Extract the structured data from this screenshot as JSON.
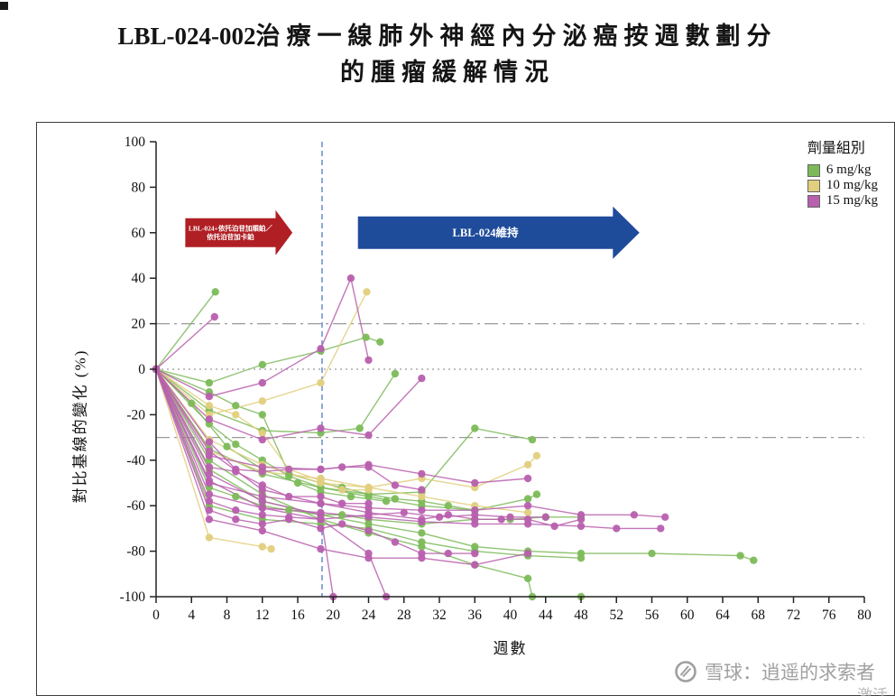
{
  "page": {
    "title_prefix": "LBL-024-002",
    "title_line1_rest": "治療一線肺外神經內分泌癌按週數劃分",
    "title_line2": "的腫瘤緩解情況"
  },
  "watermark": {
    "text": "雪球：逍遥的求索者",
    "partial_text": "激活"
  },
  "chart_data": {
    "type": "line",
    "subtype": "spider-plot",
    "title": "LBL-024-002治療一線肺外神經內分泌癌按週數劃分的腫瘤緩解情況",
    "xlabel": "週數",
    "ylabel": "對比基線的變化 (%)",
    "xlim": [
      0,
      80
    ],
    "ylim": [
      -100,
      100
    ],
    "xticks": [
      0,
      4,
      8,
      12,
      16,
      20,
      24,
      28,
      32,
      36,
      40,
      44,
      48,
      52,
      56,
      60,
      64,
      68,
      72,
      76,
      80
    ],
    "yticks": [
      -100,
      -80,
      -60,
      -40,
      -20,
      0,
      20,
      40,
      60,
      80,
      100
    ],
    "grid": false,
    "reference_lines": [
      {
        "y": 20,
        "color": "#999999",
        "dash": "15 5 3 5"
      },
      {
        "y": 0,
        "color": "#999999",
        "dash": "2 4"
      },
      {
        "y": -30,
        "color": "#999999",
        "dash": "15 5 3 5"
      }
    ],
    "vline": {
      "x": 18.75,
      "color": "#5b84c4",
      "dash": "6 4"
    },
    "legend": {
      "title": "劑量組別",
      "position": "top-right",
      "entries": [
        {
          "label": "6 mg/kg",
          "color": "#7cba59"
        },
        {
          "label": "10 mg/kg",
          "color": "#e2cf7e"
        },
        {
          "label": "15 mg/kg",
          "color": "#b85fae"
        }
      ]
    },
    "annotations": [
      {
        "type": "arrow",
        "x_start": 3.3,
        "x_end": 15.4,
        "y": 60,
        "color": "#b01f24",
        "body_half_height": 16,
        "head_half_height": 25,
        "head_length_weeks": 1.9,
        "label_lines": [
          "LBL-024+依托泊苷加順鉑／",
          "依托泊苷加卡鉑"
        ],
        "font_size": 7.5
      },
      {
        "type": "arrow",
        "x_start": 22.8,
        "x_end": 54.6,
        "y": 60,
        "color": "#1f4b9b",
        "body_half_height": 18,
        "head_half_height": 29,
        "head_length_weeks": 3,
        "label_lines": [
          "LBL-024維持"
        ],
        "font_size": 12.5
      }
    ],
    "series": [
      {
        "group": "6 mg/kg",
        "points": [
          [
            0,
            0
          ],
          [
            6.7,
            34
          ]
        ]
      },
      {
        "group": "6 mg/kg",
        "points": [
          [
            0,
            0
          ],
          [
            6,
            -6
          ],
          [
            12,
            2
          ],
          [
            18.6,
            8
          ],
          [
            23.7,
            14
          ],
          [
            25.3,
            12
          ]
        ]
      },
      {
        "group": "6 mg/kg",
        "points": [
          [
            0,
            0
          ],
          [
            6,
            -18
          ],
          [
            12,
            -27
          ],
          [
            18.6,
            -28
          ],
          [
            23,
            -26
          ],
          [
            27,
            -2
          ]
        ]
      },
      {
        "group": "6 mg/kg",
        "points": [
          [
            0,
            0
          ],
          [
            6,
            -35
          ],
          [
            12,
            -46
          ],
          [
            18.6,
            -52
          ],
          [
            24,
            -55
          ],
          [
            30,
            -54
          ],
          [
            36,
            -26
          ],
          [
            42.5,
            -31
          ]
        ]
      },
      {
        "group": "6 mg/kg",
        "points": [
          [
            0,
            0
          ],
          [
            6,
            -24
          ],
          [
            9,
            -33
          ],
          [
            12,
            -40
          ],
          [
            15,
            -47
          ],
          [
            18.6,
            -52
          ],
          [
            24,
            -56
          ],
          [
            30,
            -60
          ],
          [
            36,
            -62
          ],
          [
            42,
            -57
          ],
          [
            43,
            -55
          ]
        ]
      },
      {
        "group": "6 mg/kg",
        "points": [
          [
            0,
            0
          ],
          [
            6,
            -44
          ],
          [
            12,
            -58
          ],
          [
            18.6,
            -64
          ],
          [
            24,
            -68
          ],
          [
            30,
            -72
          ],
          [
            36,
            -78
          ],
          [
            42,
            -80
          ],
          [
            48,
            -81
          ],
          [
            56,
            -81
          ],
          [
            66,
            -82
          ],
          [
            67.5,
            -84
          ]
        ]
      },
      {
        "group": "6 mg/kg",
        "points": [
          [
            0,
            0
          ],
          [
            6,
            -40
          ],
          [
            12,
            -55
          ],
          [
            18.6,
            -66
          ],
          [
            24,
            -72
          ],
          [
            30,
            -78
          ],
          [
            36,
            -86
          ],
          [
            42,
            -92
          ],
          [
            42.5,
            -100
          ],
          [
            48,
            -100
          ]
        ]
      },
      {
        "group": "6 mg/kg",
        "points": [
          [
            0,
            0
          ],
          [
            6,
            -52
          ],
          [
            9,
            -56
          ],
          [
            12,
            -60
          ],
          [
            15,
            -62
          ],
          [
            18.6,
            -64
          ],
          [
            21,
            -64
          ],
          [
            24,
            -66
          ],
          [
            30,
            -68
          ],
          [
            36,
            -66
          ],
          [
            40,
            -66
          ],
          [
            44,
            -65
          ],
          [
            48,
            -65
          ]
        ]
      },
      {
        "group": "6 mg/kg",
        "points": [
          [
            0,
            0
          ],
          [
            6,
            -60
          ],
          [
            12,
            -66
          ],
          [
            18.6,
            -68
          ],
          [
            24,
            -70
          ],
          [
            30,
            -76
          ],
          [
            36,
            -80
          ],
          [
            42,
            -82
          ],
          [
            48,
            -83
          ]
        ]
      },
      {
        "group": "6 mg/kg",
        "points": [
          [
            0,
            0
          ],
          [
            4,
            -15
          ],
          [
            8,
            -34
          ],
          [
            12,
            -44
          ],
          [
            16,
            -50
          ],
          [
            18.6,
            -54
          ],
          [
            22,
            -56
          ],
          [
            26,
            -58
          ]
        ]
      },
      {
        "group": "6 mg/kg",
        "points": [
          [
            0,
            0
          ],
          [
            6,
            -10
          ],
          [
            9,
            -16
          ],
          [
            12,
            -20
          ],
          [
            15,
            -46
          ],
          [
            18.6,
            -50
          ],
          [
            21,
            -52
          ],
          [
            24,
            -55
          ],
          [
            27,
            -57
          ],
          [
            30,
            -58
          ],
          [
            33,
            -60
          ],
          [
            36,
            -62
          ]
        ]
      },
      {
        "group": "10 mg/kg",
        "points": [
          [
            0,
            0
          ],
          [
            6,
            -74
          ],
          [
            12,
            -78
          ],
          [
            13,
            -79
          ]
        ]
      },
      {
        "group": "10 mg/kg",
        "points": [
          [
            0,
            0
          ],
          [
            6,
            -20
          ],
          [
            12,
            -14
          ],
          [
            18.6,
            -6
          ],
          [
            23.8,
            34
          ]
        ]
      },
      {
        "group": "10 mg/kg",
        "points": [
          [
            0,
            0
          ],
          [
            6,
            -31
          ],
          [
            12,
            -42
          ],
          [
            18.6,
            -50
          ],
          [
            24,
            -52
          ],
          [
            30,
            -48
          ],
          [
            36,
            -52
          ],
          [
            42,
            -42
          ],
          [
            43,
            -38
          ]
        ]
      },
      {
        "group": "10 mg/kg",
        "points": [
          [
            0,
            0
          ],
          [
            6,
            -36
          ],
          [
            12,
            -45
          ],
          [
            18.6,
            -48
          ],
          [
            24,
            -52
          ],
          [
            30,
            -56
          ],
          [
            36,
            -60
          ],
          [
            42,
            -63
          ]
        ]
      },
      {
        "group": "10 mg/kg",
        "points": [
          [
            0,
            0
          ],
          [
            6,
            -16
          ],
          [
            9,
            -20
          ],
          [
            12,
            -28
          ],
          [
            15,
            -44
          ],
          [
            18.6,
            -49
          ],
          [
            21,
            -53
          ],
          [
            24,
            -53
          ]
        ]
      },
      {
        "group": "15 mg/kg",
        "points": [
          [
            0,
            0
          ],
          [
            6.6,
            23
          ]
        ]
      },
      {
        "group": "15 mg/kg",
        "points": [
          [
            0,
            0
          ],
          [
            6,
            -12
          ],
          [
            12,
            -6
          ],
          [
            18.6,
            9
          ],
          [
            22,
            40
          ],
          [
            24,
            4
          ]
        ]
      },
      {
        "group": "15 mg/kg",
        "points": [
          [
            0,
            0
          ],
          [
            6,
            -22
          ],
          [
            12,
            -31
          ],
          [
            18.6,
            -26
          ],
          [
            24,
            -29
          ],
          [
            30,
            -4
          ]
        ]
      },
      {
        "group": "15 mg/kg",
        "points": [
          [
            0,
            0
          ],
          [
            6,
            -38
          ],
          [
            12,
            -43
          ],
          [
            18.6,
            -44
          ],
          [
            24,
            -42
          ],
          [
            30,
            -46
          ],
          [
            36,
            -50
          ],
          [
            42,
            -48
          ]
        ]
      },
      {
        "group": "15 mg/kg",
        "points": [
          [
            0,
            0
          ],
          [
            6,
            -50
          ],
          [
            12,
            -56
          ],
          [
            18.6,
            -59
          ],
          [
            24,
            -61
          ],
          [
            30,
            -62
          ],
          [
            36,
            -62
          ],
          [
            42,
            -60
          ],
          [
            48,
            -64
          ],
          [
            54,
            -64
          ],
          [
            57.5,
            -65
          ]
        ]
      },
      {
        "group": "15 mg/kg",
        "points": [
          [
            0,
            0
          ],
          [
            6,
            -55
          ],
          [
            12,
            -61
          ],
          [
            18.6,
            -63
          ],
          [
            24,
            -65
          ],
          [
            30,
            -67
          ],
          [
            36,
            -68
          ],
          [
            42,
            -68
          ],
          [
            48,
            -69
          ],
          [
            52,
            -70
          ],
          [
            57,
            -70
          ]
        ]
      },
      {
        "group": "15 mg/kg",
        "points": [
          [
            0,
            0
          ],
          [
            6,
            -46
          ],
          [
            12,
            -58
          ],
          [
            18.6,
            -64
          ],
          [
            20,
            -100
          ]
        ]
      },
      {
        "group": "15 mg/kg",
        "points": [
          [
            0,
            0
          ],
          [
            6,
            -49
          ],
          [
            12,
            -61
          ],
          [
            18.6,
            -66
          ],
          [
            24,
            -81
          ],
          [
            26,
            -100
          ]
        ]
      },
      {
        "group": "15 mg/kg",
        "points": [
          [
            0,
            0
          ],
          [
            6,
            -62
          ],
          [
            9,
            -66
          ],
          [
            12,
            -68
          ],
          [
            15,
            -66
          ],
          [
            18.6,
            -70
          ],
          [
            21,
            -68
          ],
          [
            24,
            -71
          ],
          [
            27,
            -76
          ],
          [
            30,
            -81
          ],
          [
            33,
            -81
          ],
          [
            36,
            -81
          ]
        ]
      },
      {
        "group": "15 mg/kg",
        "points": [
          [
            0,
            0
          ],
          [
            6,
            -43
          ],
          [
            9,
            -45
          ],
          [
            12,
            -51
          ],
          [
            15,
            -56
          ],
          [
            18.6,
            -56
          ],
          [
            21,
            -59
          ],
          [
            24,
            -59
          ]
        ]
      },
      {
        "group": "15 mg/kg",
        "points": [
          [
            0,
            0
          ],
          [
            6,
            -66
          ],
          [
            12,
            -71
          ],
          [
            18.6,
            -79
          ],
          [
            24,
            -83
          ],
          [
            30,
            -83
          ],
          [
            36,
            -86
          ],
          [
            42,
            -81
          ]
        ]
      },
      {
        "group": "15 mg/kg",
        "points": [
          [
            0,
            0
          ],
          [
            6,
            -32
          ],
          [
            9,
            -44
          ],
          [
            12,
            -45
          ],
          [
            15,
            -44
          ],
          [
            18.6,
            -44
          ],
          [
            21,
            -43
          ],
          [
            24,
            -43
          ],
          [
            27,
            -51
          ],
          [
            30,
            -53
          ]
        ]
      },
      {
        "group": "15 mg/kg",
        "points": [
          [
            0,
            0
          ],
          [
            6,
            -36
          ],
          [
            12,
            -53
          ],
          [
            18.6,
            -59
          ],
          [
            24,
            -63
          ],
          [
            30,
            -66
          ],
          [
            33,
            -64
          ],
          [
            36,
            -66
          ],
          [
            39,
            -66
          ],
          [
            42,
            -66
          ],
          [
            45,
            -69
          ],
          [
            48,
            -66
          ]
        ]
      },
      {
        "group": "15 mg/kg",
        "points": [
          [
            0,
            0
          ],
          [
            6,
            -58
          ],
          [
            9,
            -62
          ],
          [
            12,
            -64
          ],
          [
            15,
            -65
          ],
          [
            18.6,
            -66
          ],
          [
            24,
            -64
          ],
          [
            28,
            -63
          ],
          [
            32,
            -65
          ],
          [
            36,
            -64
          ],
          [
            40,
            -65
          ],
          [
            44,
            -65
          ]
        ]
      }
    ]
  }
}
